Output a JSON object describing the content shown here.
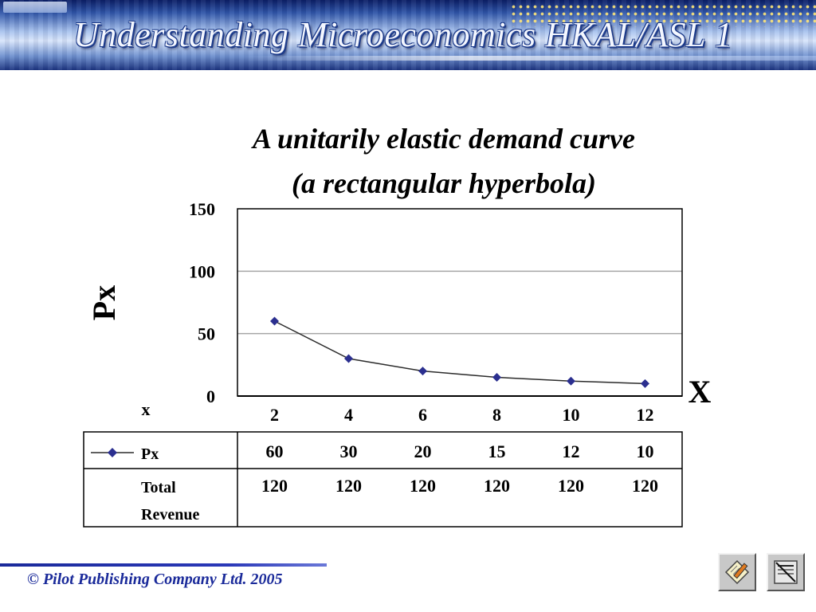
{
  "banner": {
    "title": "Understanding Microeconomics HKAL/ASL 1"
  },
  "chart_data": {
    "type": "line",
    "title": "A unitarily elastic demand curve",
    "subtitle": "(a rectangular hyperbola)",
    "ylabel": "Px",
    "xlabel": "X",
    "x_row_label": "x",
    "categories": [
      2,
      4,
      6,
      8,
      10,
      12
    ],
    "ylim": [
      0,
      150
    ],
    "yticks": [
      0,
      50,
      100,
      150
    ],
    "grid": true,
    "marker_color": "#2b2f8f",
    "line_color": "#2b2b2b",
    "series": [
      {
        "name": "Px",
        "values": [
          60,
          30,
          20,
          15,
          12,
          10
        ]
      }
    ],
    "table_rows": [
      {
        "label": "Px",
        "values": [
          "60",
          "30",
          "20",
          "15",
          "12",
          "10"
        ]
      },
      {
        "label_lines": [
          "Total",
          "Revenue"
        ],
        "values": [
          "120",
          "120",
          "120",
          "120",
          "120",
          "120"
        ]
      }
    ]
  },
  "footer": {
    "copyright": "© Pilot Publishing Company Ltd. 2005",
    "accent_color": "#1a2a9a"
  },
  "nav": {
    "notes_icon": "notes-icon",
    "document_icon": "document-icon"
  }
}
